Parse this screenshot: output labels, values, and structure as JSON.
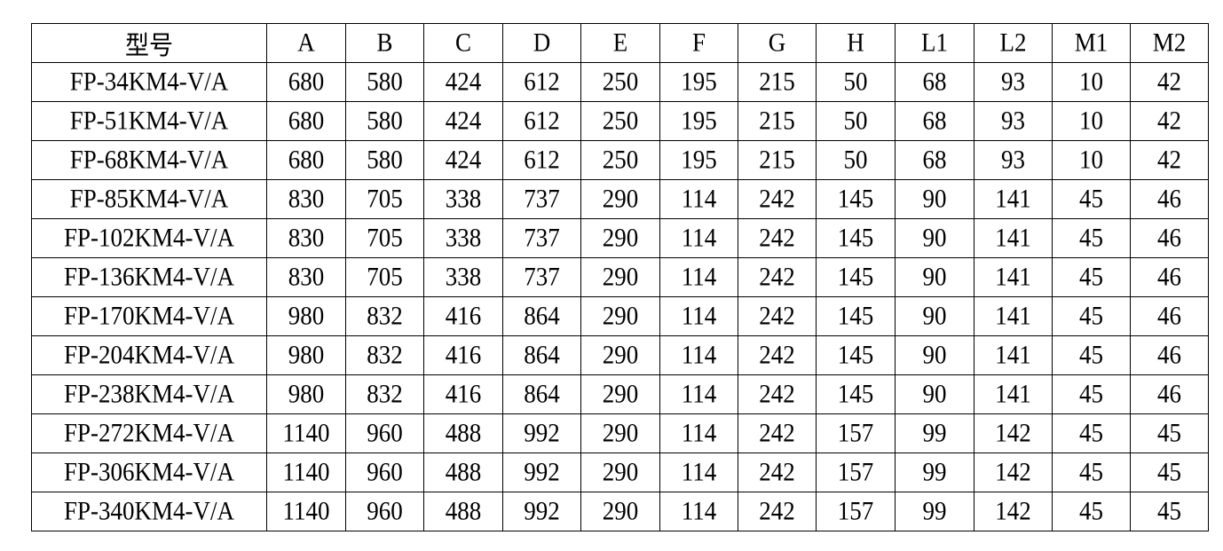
{
  "table": {
    "headers": [
      "型号",
      "A",
      "B",
      "C",
      "D",
      "E",
      "F",
      "G",
      "H",
      "L1",
      "L2",
      "M1",
      "M2"
    ],
    "rows": [
      [
        "FP-34KM4-V/A",
        "680",
        "580",
        "424",
        "612",
        "250",
        "195",
        "215",
        "50",
        "68",
        "93",
        "10",
        "42"
      ],
      [
        "FP-51KM4-V/A",
        "680",
        "580",
        "424",
        "612",
        "250",
        "195",
        "215",
        "50",
        "68",
        "93",
        "10",
        "42"
      ],
      [
        "FP-68KM4-V/A",
        "680",
        "580",
        "424",
        "612",
        "250",
        "195",
        "215",
        "50",
        "68",
        "93",
        "10",
        "42"
      ],
      [
        "FP-85KM4-V/A",
        "830",
        "705",
        "338",
        "737",
        "290",
        "114",
        "242",
        "145",
        "90",
        "141",
        "45",
        "46"
      ],
      [
        "FP-102KM4-V/A",
        "830",
        "705",
        "338",
        "737",
        "290",
        "114",
        "242",
        "145",
        "90",
        "141",
        "45",
        "46"
      ],
      [
        "FP-136KM4-V/A",
        "830",
        "705",
        "338",
        "737",
        "290",
        "114",
        "242",
        "145",
        "90",
        "141",
        "45",
        "46"
      ],
      [
        "FP-170KM4-V/A",
        "980",
        "832",
        "416",
        "864",
        "290",
        "114",
        "242",
        "145",
        "90",
        "141",
        "45",
        "46"
      ],
      [
        "FP-204KM4-V/A",
        "980",
        "832",
        "416",
        "864",
        "290",
        "114",
        "242",
        "145",
        "90",
        "141",
        "45",
        "46"
      ],
      [
        "FP-238KM4-V/A",
        "980",
        "832",
        "416",
        "864",
        "290",
        "114",
        "242",
        "145",
        "90",
        "141",
        "45",
        "46"
      ],
      [
        "FP-272KM4-V/A",
        "1140",
        "960",
        "488",
        "992",
        "290",
        "114",
        "242",
        "157",
        "99",
        "142",
        "45",
        "45"
      ],
      [
        "FP-306KM4-V/A",
        "1140",
        "960",
        "488",
        "992",
        "290",
        "114",
        "242",
        "157",
        "99",
        "142",
        "45",
        "45"
      ],
      [
        "FP-340KM4-V/A",
        "1140",
        "960",
        "488",
        "992",
        "290",
        "114",
        "242",
        "157",
        "99",
        "142",
        "45",
        "45"
      ]
    ]
  }
}
